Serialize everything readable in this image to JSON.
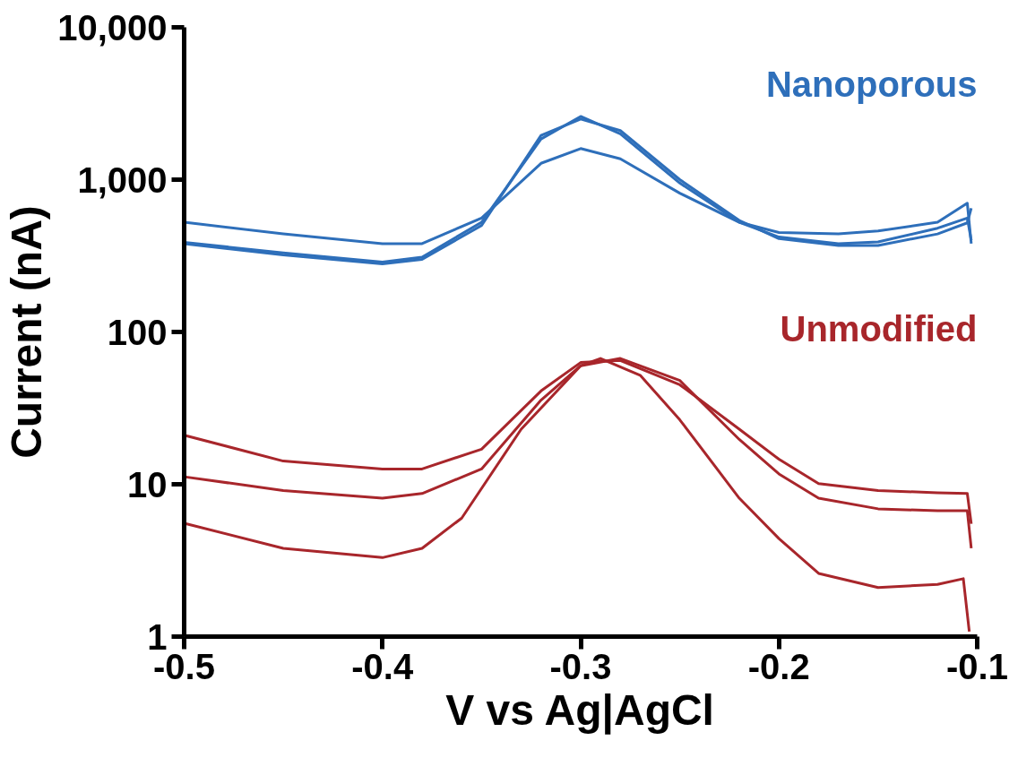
{
  "chart_data": {
    "type": "line",
    "xlabel": "V vs Ag|AgCl",
    "ylabel": "Current (nA)",
    "log": "y",
    "xlim": [
      -0.5,
      -0.1
    ],
    "xticks": [
      -0.5,
      -0.4,
      -0.3,
      -0.2,
      -0.1
    ],
    "ylim": [
      1,
      10000
    ],
    "yticks": [
      1,
      10,
      100,
      {
        "value": 1000,
        "label": "1,000"
      },
      {
        "value": 10000,
        "label": "10,000"
      }
    ],
    "grid": false,
    "marker": "none",
    "line_style": "solid",
    "series": [
      {
        "name": "Nanoporous",
        "color": "#2e6fba",
        "x": [
          -0.5,
          -0.45,
          -0.4,
          -0.38,
          -0.35,
          -0.32,
          -0.3,
          -0.28,
          -0.25,
          -0.22,
          -0.2,
          -0.17,
          -0.15,
          -0.12,
          -0.105,
          -0.103
        ],
        "values": [
          388,
          330,
          288,
          310,
          525,
          1850,
          2600,
          2000,
          950,
          525,
          420,
          380,
          390,
          480,
          560,
          400
        ]
      },
      {
        "color": "#2e6fba",
        "x": [
          -0.5,
          -0.45,
          -0.4,
          -0.38,
          -0.35,
          -0.32,
          -0.3,
          -0.28,
          -0.25,
          -0.22,
          -0.2,
          -0.17,
          -0.15,
          -0.12,
          -0.105,
          -0.103
        ],
        "values": [
          380,
          320,
          280,
          300,
          500,
          1950,
          2500,
          2100,
          1000,
          540,
          410,
          370,
          370,
          440,
          520,
          650
        ]
      },
      {
        "color": "#2e6fba",
        "x": [
          -0.5,
          -0.45,
          -0.4,
          -0.38,
          -0.35,
          -0.32,
          -0.3,
          -0.28,
          -0.25,
          -0.22,
          -0.2,
          -0.17,
          -0.15,
          -0.12,
          -0.105,
          -0.103
        ],
        "values": [
          525,
          440,
          380,
          380,
          560,
          1280,
          1600,
          1370,
          815,
          525,
          450,
          440,
          460,
          525,
          700,
          380
        ]
      },
      {
        "name": "Unmodified",
        "color": "#a8262b",
        "x": [
          -0.5,
          -0.45,
          -0.4,
          -0.38,
          -0.35,
          -0.32,
          -0.3,
          -0.28,
          -0.25,
          -0.22,
          -0.2,
          -0.18,
          -0.15,
          -0.12,
          -0.105,
          -0.103
        ],
        "values": [
          21,
          14.2,
          12.6,
          12.6,
          17,
          41,
          63,
          65,
          45,
          23,
          14.6,
          10.1,
          9.1,
          8.8,
          8.7,
          5.5
        ]
      },
      {
        "color": "#a8262b",
        "x": [
          -0.5,
          -0.45,
          -0.4,
          -0.38,
          -0.35,
          -0.32,
          -0.3,
          -0.28,
          -0.25,
          -0.22,
          -0.2,
          -0.18,
          -0.15,
          -0.12,
          -0.105,
          -0.103
        ],
        "values": [
          11.2,
          9.1,
          8.1,
          8.7,
          12.6,
          35.7,
          60,
          67,
          48,
          19.7,
          11.7,
          8.1,
          6.9,
          6.7,
          6.7,
          3.8
        ]
      },
      {
        "color": "#a8262b",
        "x": [
          -0.5,
          -0.45,
          -0.4,
          -0.38,
          -0.36,
          -0.33,
          -0.3,
          -0.29,
          -0.27,
          -0.25,
          -0.22,
          -0.2,
          -0.18,
          -0.15,
          -0.12,
          -0.107,
          -0.104
        ],
        "values": [
          5.55,
          3.8,
          3.3,
          3.8,
          6.0,
          23,
          60,
          67,
          52,
          26.5,
          8.1,
          4.4,
          2.6,
          2.1,
          2.2,
          2.4,
          1.08
        ]
      }
    ]
  }
}
